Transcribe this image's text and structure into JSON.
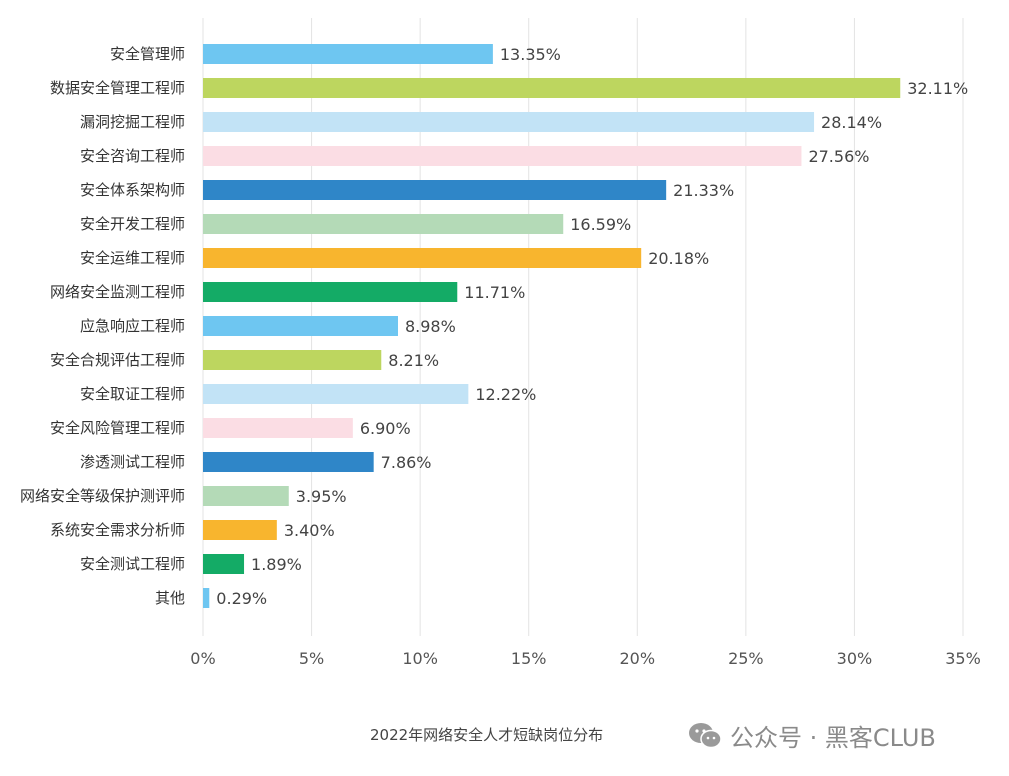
{
  "chart_data": {
    "type": "bar",
    "orientation": "horizontal",
    "categories": [
      "安全管理师",
      "数据安全管理工程师",
      "漏洞挖掘工程师",
      "安全咨询工程师",
      "安全体系架构师",
      "安全开发工程师",
      "安全运维工程师",
      "网络安全监测工程师",
      "应急响应工程师",
      "安全合规评估工程师",
      "安全取证工程师",
      "安全风险管理工程师",
      "渗透测试工程师",
      "网络安全等级保护测评师",
      "系统安全需求分析师",
      "安全测试工程师",
      "其他"
    ],
    "values": [
      13.35,
      32.11,
      28.14,
      27.56,
      21.33,
      16.59,
      20.18,
      11.71,
      8.98,
      8.21,
      12.22,
      6.9,
      7.86,
      3.95,
      3.4,
      1.89,
      0.29
    ],
    "value_labels": [
      "13.35%",
      "32.11%",
      "28.14%",
      "27.56%",
      "21.33%",
      "16.59%",
      "20.18%",
      "11.71%",
      "8.98%",
      "8.21%",
      "12.22%",
      "6.90%",
      "7.86%",
      "3.95%",
      "3.40%",
      "1.89%",
      "0.29%"
    ],
    "colors": [
      "#6ec6f1",
      "#bdd65f",
      "#c2e3f6",
      "#fbdde4",
      "#2f86c8",
      "#b4dab7",
      "#f8b52e",
      "#14ab66"
    ],
    "xlim": [
      0,
      35
    ],
    "x_ticks": [
      0,
      5,
      10,
      15,
      20,
      25,
      30,
      35
    ],
    "x_tick_labels": [
      "0%",
      "5%",
      "10%",
      "15%",
      "20%",
      "25%",
      "30%",
      "35%"
    ],
    "grid": true,
    "title": "2022年网络安全人才短缺岗位分布"
  },
  "watermark": {
    "text": "公众号 · 黑客CLUB",
    "icon": "wechat-icon"
  }
}
